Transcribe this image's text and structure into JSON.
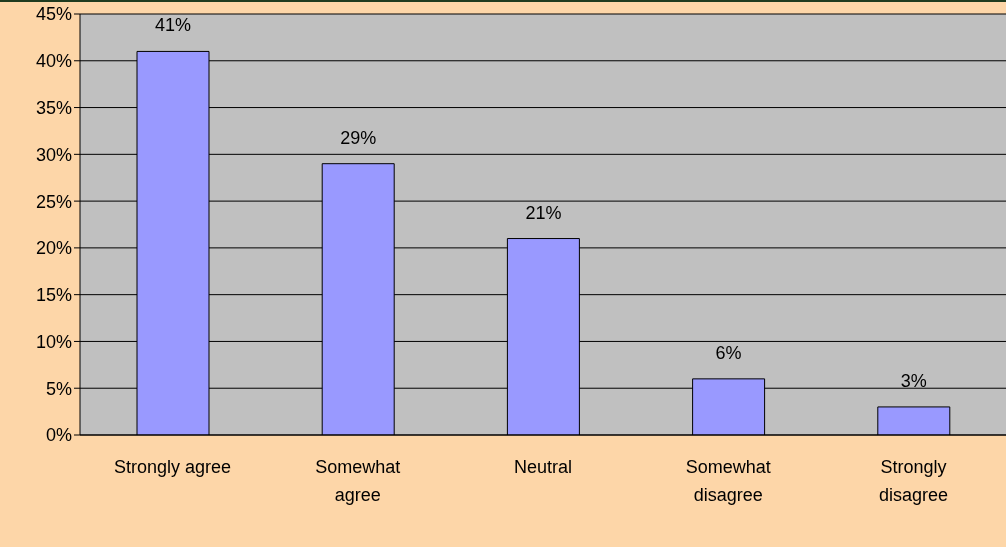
{
  "chart_data": {
    "type": "bar",
    "categories": [
      "Strongly agree",
      "Somewhat agree",
      "Neutral",
      "Somewhat disagree",
      "Strongly disagree"
    ],
    "values": [
      41,
      29,
      21,
      6,
      3
    ],
    "value_labels": [
      "41%",
      "29%",
      "21%",
      "6%",
      "3%"
    ],
    "color": "#9999ff",
    "ylim": [
      0,
      45
    ],
    "yticks": [
      {
        "value": 0,
        "label": "0%"
      },
      {
        "value": 5,
        "label": "5%"
      },
      {
        "value": 10,
        "label": "10%"
      },
      {
        "value": 15,
        "label": "15%"
      },
      {
        "value": 20,
        "label": "20%"
      },
      {
        "value": 25,
        "label": "25%"
      },
      {
        "value": 30,
        "label": "30%"
      },
      {
        "value": 35,
        "label": "35%"
      },
      {
        "value": 40,
        "label": "40%"
      },
      {
        "value": 45,
        "label": "45%"
      }
    ],
    "grid": "y",
    "legend": false
  }
}
